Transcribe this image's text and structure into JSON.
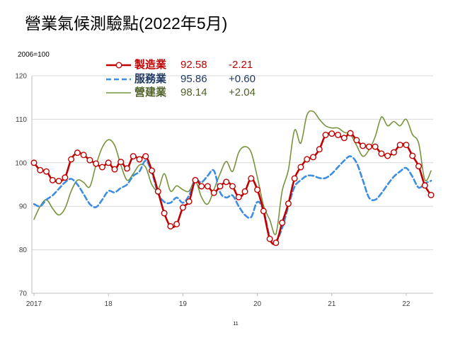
{
  "page": {
    "page_number": "11"
  },
  "chart_data": {
    "type": "line",
    "title": "營業氣候測驗點(2022年5月)",
    "ylabel": "2006=100",
    "ylim": [
      70,
      120
    ],
    "yticks": [
      70,
      80,
      90,
      100,
      110,
      120
    ],
    "grid": true,
    "legend": "top-left",
    "xticks": [
      {
        "label": "2017",
        "x": "2017-01"
      },
      {
        "label": "18",
        "x": "2018-01"
      },
      {
        "label": "19",
        "x": "2019-01"
      },
      {
        "label": "20",
        "x": "2020-01"
      },
      {
        "label": "21",
        "x": "2021-01"
      },
      {
        "label": "22",
        "x": "2022-01"
      }
    ],
    "x": [
      "2017-01",
      "2017-02",
      "2017-03",
      "2017-04",
      "2017-05",
      "2017-06",
      "2017-07",
      "2017-08",
      "2017-09",
      "2017-10",
      "2017-11",
      "2017-12",
      "2018-01",
      "2018-02",
      "2018-03",
      "2018-04",
      "2018-05",
      "2018-06",
      "2018-07",
      "2018-08",
      "2018-09",
      "2018-10",
      "2018-11",
      "2018-12",
      "2019-01",
      "2019-02",
      "2019-03",
      "2019-04",
      "2019-05",
      "2019-06",
      "2019-07",
      "2019-08",
      "2019-09",
      "2019-10",
      "2019-11",
      "2019-12",
      "2020-01",
      "2020-02",
      "2020-03",
      "2020-04",
      "2020-05",
      "2020-06",
      "2020-07",
      "2020-08",
      "2020-09",
      "2020-10",
      "2020-11",
      "2020-12",
      "2021-01",
      "2021-02",
      "2021-03",
      "2021-04",
      "2021-05",
      "2021-06",
      "2021-07",
      "2021-08",
      "2021-09",
      "2021-10",
      "2021-11",
      "2021-12",
      "2022-01",
      "2022-02",
      "2022-03",
      "2022-04",
      "2022-05"
    ],
    "series": [
      {
        "name": "製造業",
        "latest": "92.58",
        "change": "-2.21",
        "color": "#c00000",
        "text_color": "#c00000",
        "dashed": false,
        "markers": true,
        "values": [
          100.0,
          98.3,
          98.0,
          96.0,
          95.8,
          96.6,
          100.8,
          102.3,
          101.8,
          100.6,
          99.8,
          99.0,
          100.0,
          98.5,
          100.2,
          98.7,
          101.5,
          100.8,
          101.5,
          98.2,
          93.4,
          88.4,
          85.4,
          85.9,
          89.7,
          91.1,
          96.0,
          94.6,
          94.6,
          93.1,
          94.6,
          95.6,
          94.6,
          92.1,
          93.4,
          96.4,
          93.8,
          88.9,
          82.5,
          81.6,
          86.2,
          90.6,
          96.4,
          99.0,
          100.8,
          101.3,
          103.1,
          106.4,
          106.7,
          106.4,
          105.7,
          106.8,
          105.2,
          103.9,
          103.7,
          103.7,
          102.1,
          101.6,
          102.4,
          104.1,
          104.1,
          101.6,
          99.2,
          94.79,
          92.58
        ]
      },
      {
        "name": "服務業",
        "latest": "95.86",
        "change": "+0.60",
        "color": "#3d8ee0",
        "text_color": "#1f3864",
        "dashed": true,
        "markers": false,
        "values": [
          90.5,
          90.0,
          91.5,
          92.5,
          94.0,
          95.5,
          96.3,
          95.0,
          92.8,
          90.5,
          89.8,
          91.5,
          93.5,
          93.2,
          94.2,
          95.0,
          97.0,
          98.0,
          100.5,
          97.8,
          93.0,
          91.0,
          90.8,
          92.0,
          90.8,
          92.5,
          96.0,
          95.5,
          97.0,
          98.2,
          93.2,
          92.0,
          92.5,
          90.0,
          88.0,
          87.5,
          91.0,
          89.0,
          83.0,
          82.0,
          85.0,
          90.0,
          94.5,
          96.0,
          97.0,
          97.0,
          96.5,
          96.5,
          97.5,
          99.0,
          100.5,
          101.5,
          100.0,
          96.0,
          92.0,
          91.5,
          93.0,
          95.0,
          96.8,
          98.0,
          98.8,
          96.8,
          94.3,
          95.26,
          95.86
        ]
      },
      {
        "name": "營建業",
        "latest": "98.14",
        "change": "+2.04",
        "color": "#77933c",
        "text_color": "#4f6228",
        "dashed": false,
        "markers": false,
        "values": [
          87.0,
          90.0,
          91.5,
          89.5,
          88.0,
          89.5,
          93.5,
          96.0,
          95.5,
          94.5,
          99.5,
          103.5,
          105.3,
          104.0,
          99.5,
          96.0,
          97.5,
          99.5,
          99.0,
          95.0,
          93.8,
          97.5,
          93.5,
          94.7,
          93.8,
          93.5,
          95.9,
          92.1,
          90.5,
          93.8,
          97.5,
          100.3,
          98.0,
          102.4,
          103.7,
          102.4,
          96.7,
          90.2,
          86.9,
          83.7,
          93.5,
          98.3,
          107.5,
          104.5,
          111.0,
          111.8,
          110.0,
          108.5,
          108.0,
          108.0,
          107.0,
          106.5,
          104.0,
          101.5,
          103.0,
          106.0,
          110.5,
          108.5,
          109.5,
          108.5,
          110.0,
          106.5,
          104.5,
          96.1,
          98.14
        ]
      }
    ]
  }
}
